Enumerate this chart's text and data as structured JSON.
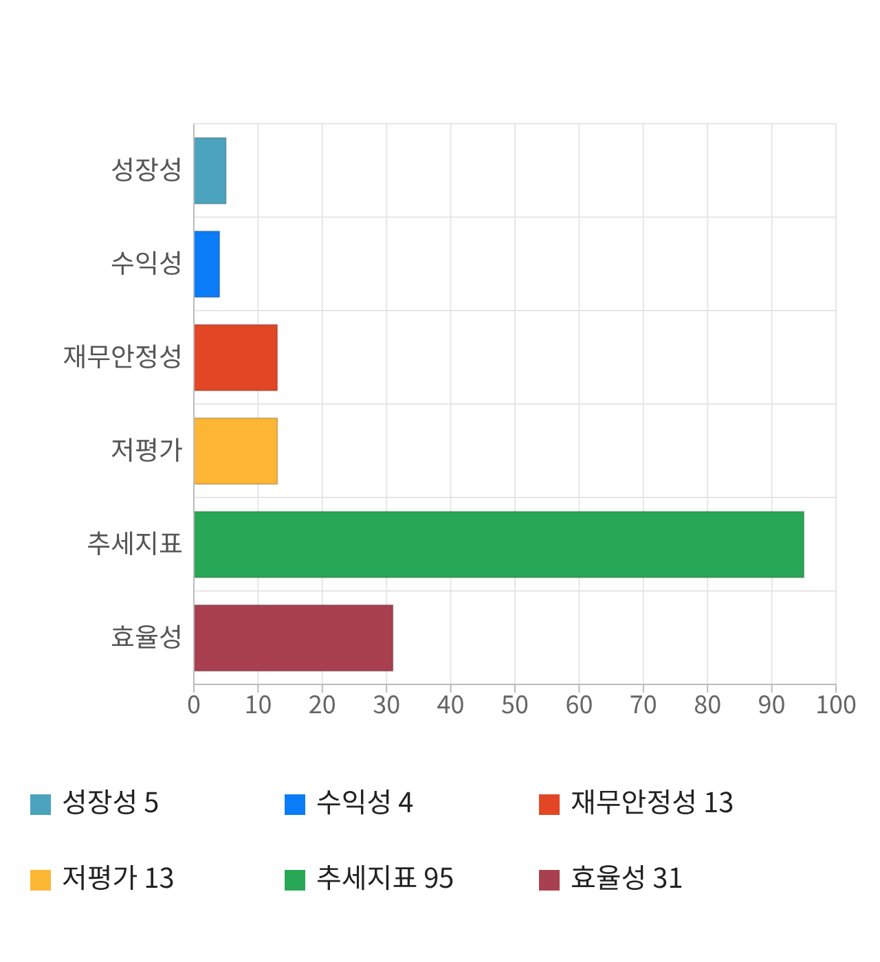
{
  "chart_data": {
    "type": "bar",
    "orientation": "horizontal",
    "stacked": true,
    "categories": [
      "성장성",
      "수익성",
      "재무안정성",
      "저평가",
      "추세지표",
      "효율성"
    ],
    "series": [
      {
        "name": "성장성 5",
        "color": "#4ba3bd",
        "values": [
          5,
          null,
          null,
          null,
          null,
          null
        ]
      },
      {
        "name": "수익성 4",
        "color": "#0a7cf7",
        "values": [
          null,
          4,
          null,
          null,
          null,
          null
        ]
      },
      {
        "name": "재무안정성 13",
        "color": "#e24624",
        "values": [
          null,
          null,
          13,
          null,
          null,
          null
        ]
      },
      {
        "name": "저평가 13",
        "color": "#fdb634",
        "values": [
          null,
          null,
          null,
          13,
          null,
          null
        ]
      },
      {
        "name": "추세지표 95",
        "color": "#28a756",
        "values": [
          null,
          null,
          null,
          null,
          95,
          null
        ]
      },
      {
        "name": "효율성 31",
        "color": "#a8404f",
        "values": [
          null,
          null,
          null,
          null,
          null,
          31
        ]
      }
    ],
    "xlim": [
      0,
      100
    ],
    "xticks": [
      0,
      10,
      20,
      30,
      40,
      50,
      60,
      70,
      80,
      90,
      100
    ],
    "grid": true,
    "legend": "bottom"
  }
}
